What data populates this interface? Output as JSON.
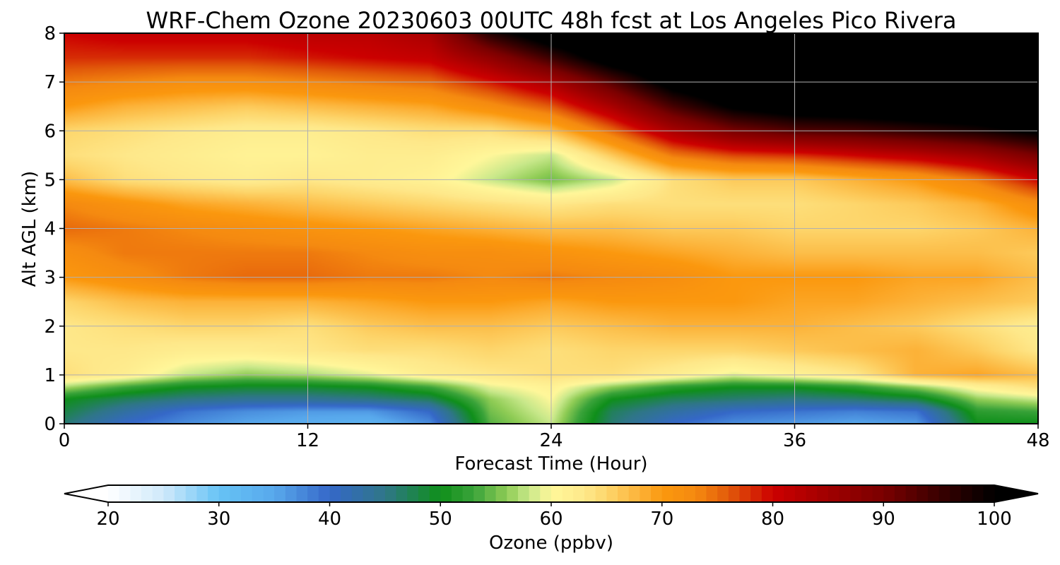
{
  "chart_data": {
    "type": "heatmap",
    "title": "WRF-Chem Ozone  20230603 00UTC 48h fcst at Los Angeles Pico Rivera",
    "xlabel": "Forecast Time (Hour)",
    "ylabel": "Alt AGL (km)",
    "xlim": [
      0,
      48
    ],
    "ylim": [
      0,
      8
    ],
    "xticks": [
      "0",
      "12",
      "24",
      "36",
      "48"
    ],
    "yticks": [
      "0",
      "1",
      "2",
      "3",
      "4",
      "5",
      "6",
      "7",
      "8"
    ],
    "grid": true,
    "x": [
      0,
      3,
      6,
      9,
      12,
      15,
      18,
      21,
      24,
      27,
      30,
      33,
      36,
      39,
      42,
      45,
      48
    ],
    "y": [
      0,
      0.25,
      0.5,
      0.75,
      1,
      1.5,
      2,
      2.5,
      3,
      3.5,
      4,
      4.5,
      5,
      5.5,
      6,
      6.5,
      7,
      7.5,
      8
    ],
    "z": [
      [
        46,
        40,
        37,
        35,
        34,
        33,
        37,
        54,
        58,
        46,
        40,
        37,
        36,
        35,
        36,
        50,
        50
      ],
      [
        48,
        43,
        39,
        37,
        36,
        36,
        40,
        55,
        59,
        47,
        43,
        40,
        39,
        38,
        39,
        52,
        53
      ],
      [
        50,
        47,
        45,
        44,
        44,
        45,
        47,
        56,
        60,
        50,
        47,
        46,
        45,
        46,
        48,
        56,
        58
      ],
      [
        57,
        53,
        50,
        49,
        49,
        50,
        53,
        59,
        61,
        56,
        52,
        50,
        50,
        52,
        56,
        61,
        64
      ],
      [
        64,
        62,
        58,
        56,
        57,
        59,
        62,
        63,
        64,
        64,
        62,
        59,
        61,
        63,
        68,
        69,
        67
      ],
      [
        63,
        63,
        62,
        62,
        63,
        64,
        64,
        65,
        64,
        65,
        65,
        65,
        66,
        67,
        68,
        66,
        63
      ],
      [
        63,
        64,
        65,
        65,
        64,
        66,
        67,
        67,
        66,
        67,
        68,
        68,
        68,
        67,
        66,
        64,
        62
      ],
      [
        65,
        67,
        68,
        68,
        68,
        69,
        70,
        70,
        69,
        70,
        70,
        70,
        69,
        69,
        68,
        67,
        66
      ],
      [
        70,
        72,
        74,
        75,
        75,
        74,
        74,
        73,
        74,
        73,
        72,
        70,
        70,
        70,
        69,
        69,
        67
      ],
      [
        72,
        74,
        74,
        74,
        74,
        73,
        72,
        72,
        71,
        70,
        69,
        68,
        67,
        67,
        67,
        67,
        66
      ],
      [
        75,
        74,
        73,
        72,
        71,
        70,
        69,
        68,
        67,
        67,
        66,
        66,
        65,
        65,
        65,
        66,
        68
      ],
      [
        73,
        71,
        69,
        68,
        67,
        66,
        65,
        64,
        63,
        64,
        64,
        64,
        64,
        65,
        66,
        68,
        72
      ],
      [
        67,
        64,
        63,
        62,
        63,
        62,
        61,
        58,
        55,
        58,
        64,
        66,
        66,
        68,
        70,
        74,
        80
      ],
      [
        64,
        63,
        62,
        61,
        61,
        62,
        62,
        60,
        58,
        66,
        74,
        77,
        78,
        80,
        82,
        85,
        90
      ],
      [
        65,
        64,
        63,
        62,
        62,
        63,
        64,
        64,
        67,
        75,
        84,
        90,
        93,
        94,
        96,
        98,
        101
      ],
      [
        70,
        68,
        67,
        66,
        67,
        68,
        69,
        72,
        76,
        84,
        94,
        101,
        104,
        105,
        106,
        106,
        107
      ],
      [
        74,
        73,
        72,
        72,
        73,
        74,
        75,
        79,
        84,
        93,
        103,
        107,
        108,
        108,
        108,
        108,
        108
      ],
      [
        78,
        78,
        78,
        78,
        79,
        80,
        81,
        87,
        95,
        104,
        108,
        108,
        108,
        108,
        108,
        107,
        106
      ],
      [
        80,
        81,
        81,
        81,
        82,
        82,
        84,
        97,
        105,
        108,
        108,
        108,
        108,
        108,
        108,
        106,
        100
      ]
    ],
    "colorbar": {
      "label": "Ozone  (ppbv)",
      "min": 20,
      "max": 100,
      "ticks": [
        "20",
        "30",
        "40",
        "50",
        "60",
        "70",
        "80",
        "90",
        "100"
      ],
      "extend": "both",
      "stops": [
        [
          20,
          "#ffffff"
        ],
        [
          25,
          "#cfe9fb"
        ],
        [
          30,
          "#66c3f5"
        ],
        [
          35,
          "#58a8ec"
        ],
        [
          40,
          "#3568c8"
        ],
        [
          45,
          "#2f7688"
        ],
        [
          50,
          "#0f8f1a"
        ],
        [
          53,
          "#3aa33a"
        ],
        [
          56,
          "#8fcc55"
        ],
        [
          58,
          "#c8e88a"
        ],
        [
          60,
          "#fff79a"
        ],
        [
          63,
          "#fee88a"
        ],
        [
          65,
          "#fdd66c"
        ],
        [
          68,
          "#fcb238"
        ],
        [
          70,
          "#fb980e"
        ],
        [
          73,
          "#f58a10"
        ],
        [
          76,
          "#e25a0a"
        ],
        [
          80,
          "#cc0000"
        ],
        [
          85,
          "#a00000"
        ],
        [
          90,
          "#7a0000"
        ],
        [
          95,
          "#3a0000"
        ],
        [
          100,
          "#000000"
        ]
      ]
    }
  }
}
